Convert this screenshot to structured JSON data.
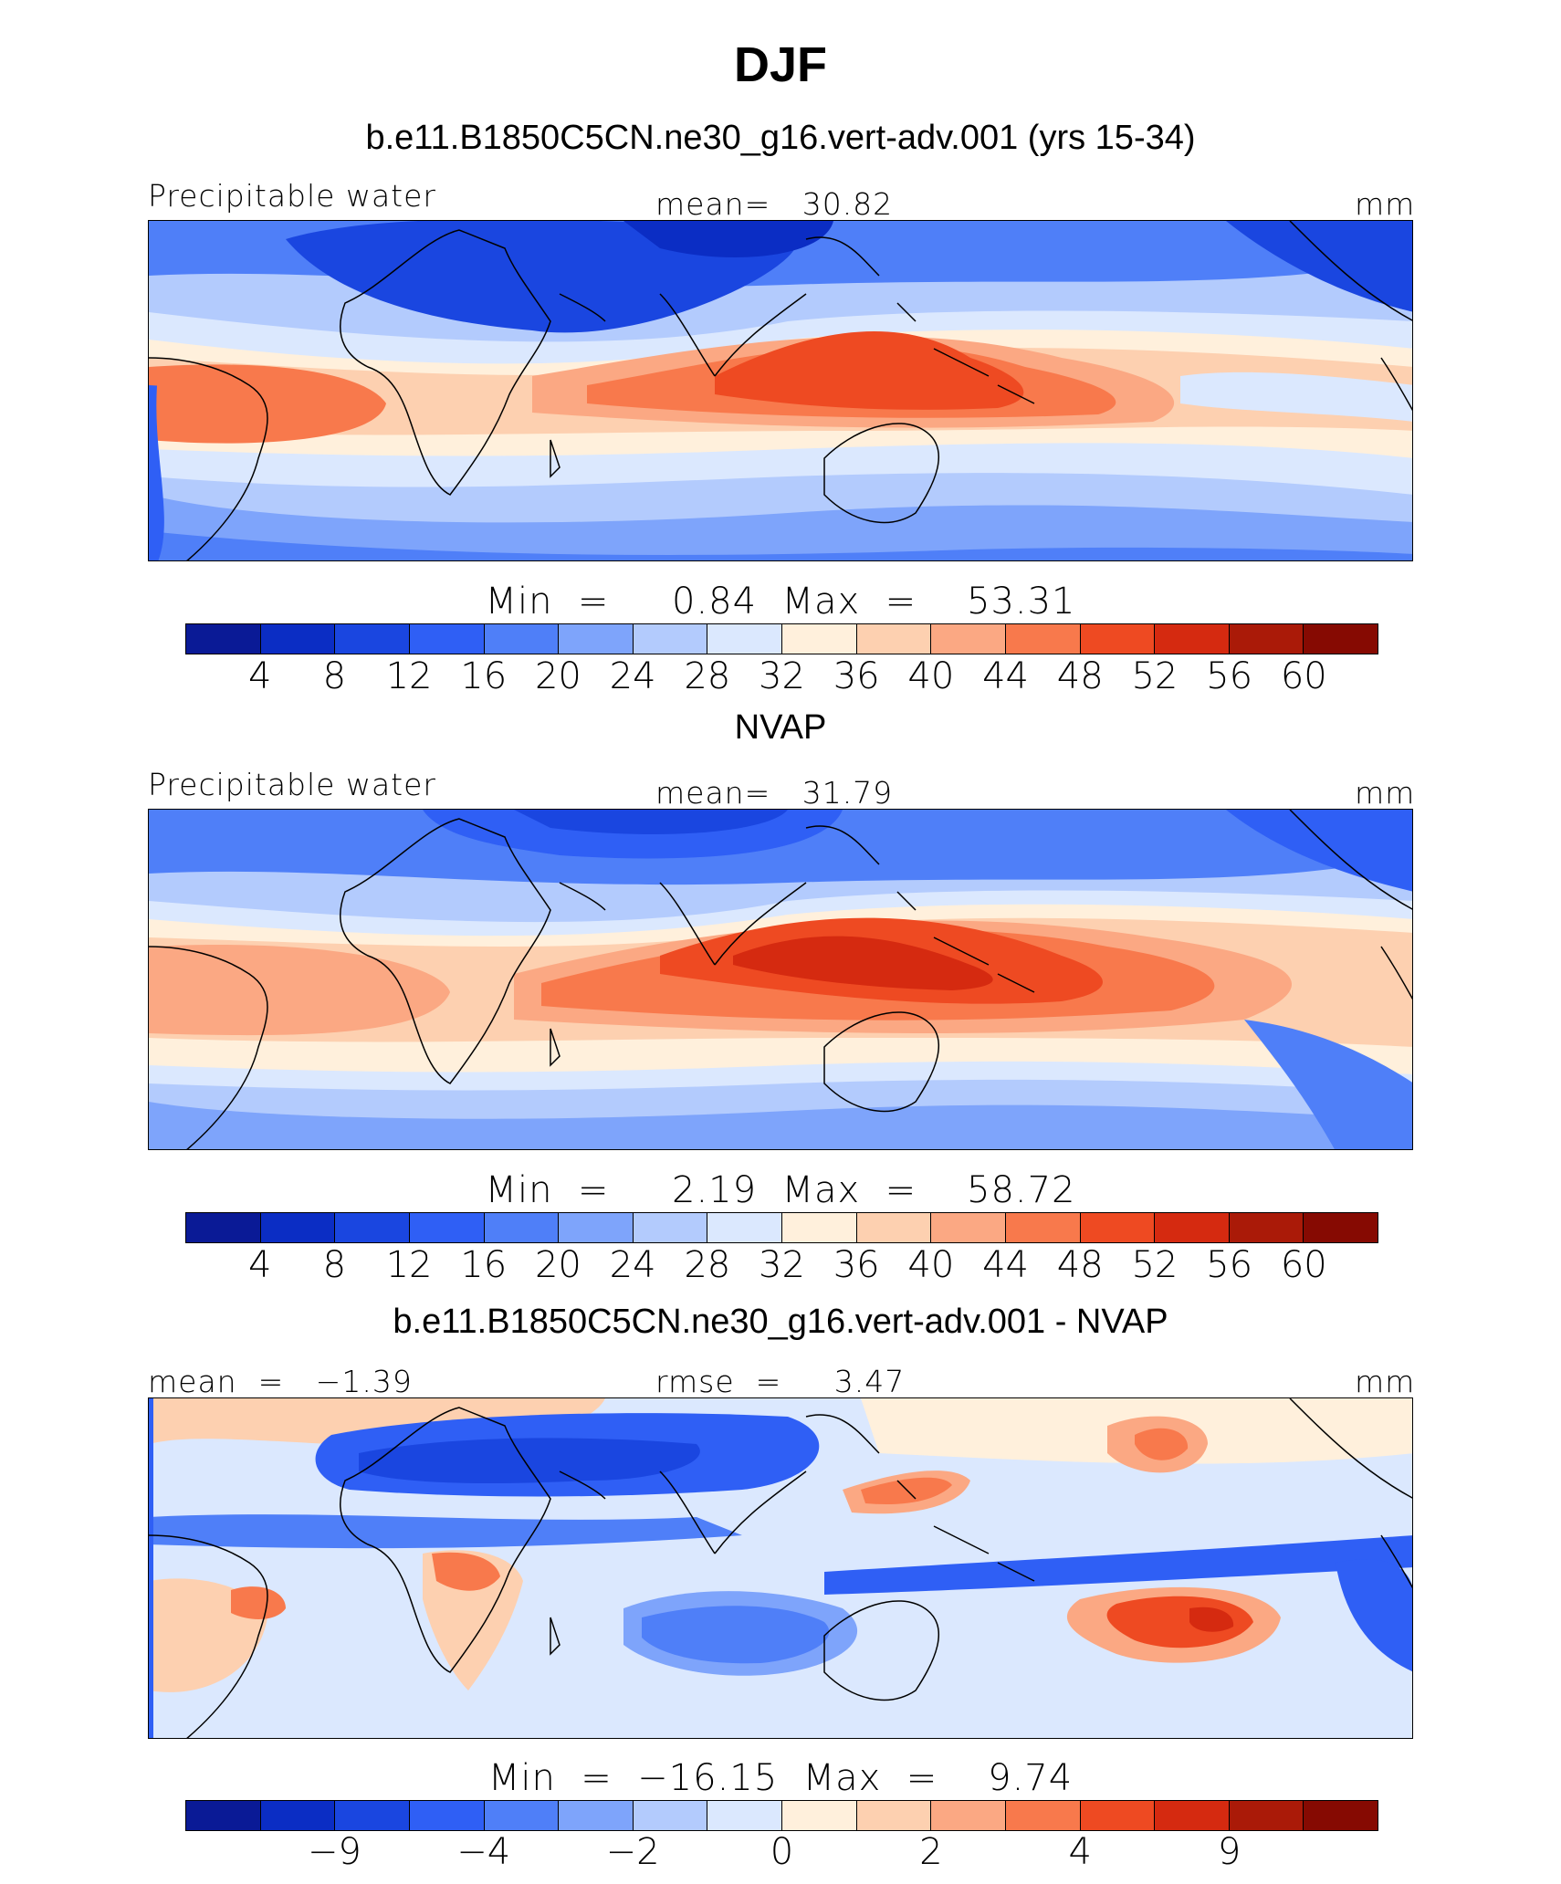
{
  "title": "DJF",
  "colors": [
    "#0a1a96",
    "#0b2dc4",
    "#1a46e0",
    "#2f5ff5",
    "#4f7ff8",
    "#7ea4fb",
    "#b3cbfd",
    "#dbe8fe",
    "#fff0dc",
    "#fdd0b0",
    "#fba883",
    "#f8794c",
    "#ee4a22",
    "#d52a10",
    "#aa1a08",
    "#860a02"
  ],
  "panels": [
    {
      "title": "b.e11.B1850C5CN.ne30_g16.vert-adv.001 (yrs 15-34)",
      "left_label": "Precipitable water",
      "center_label": "mean=   30.82",
      "right_label": "mm",
      "minmax": "Min  =     0.84  Max  =    53.31",
      "ticks": [
        "4",
        "8",
        "12",
        "16",
        "20",
        "24",
        "28",
        "32",
        "36",
        "40",
        "44",
        "48",
        "52",
        "56",
        "60"
      ]
    },
    {
      "title": "NVAP",
      "left_label": "Precipitable water",
      "center_label": "mean=   31.79",
      "right_label": "mm",
      "minmax": "Min  =     2.19  Max  =    58.72",
      "ticks": [
        "4",
        "8",
        "12",
        "16",
        "20",
        "24",
        "28",
        "32",
        "36",
        "40",
        "44",
        "48",
        "52",
        "56",
        "60"
      ]
    },
    {
      "title": "b.e11.B1850C5CN.ne30_g16.vert-adv.001 - NVAP",
      "left_label": "mean  =   −1.39",
      "center_label": "rmse  =     3.47",
      "right_label": "mm",
      "minmax": "Min  =  −16.15  Max  =    9.74",
      "ticks": [
        "−9",
        "−4",
        "−2",
        "0",
        "2",
        "4",
        "9"
      ]
    }
  ]
}
